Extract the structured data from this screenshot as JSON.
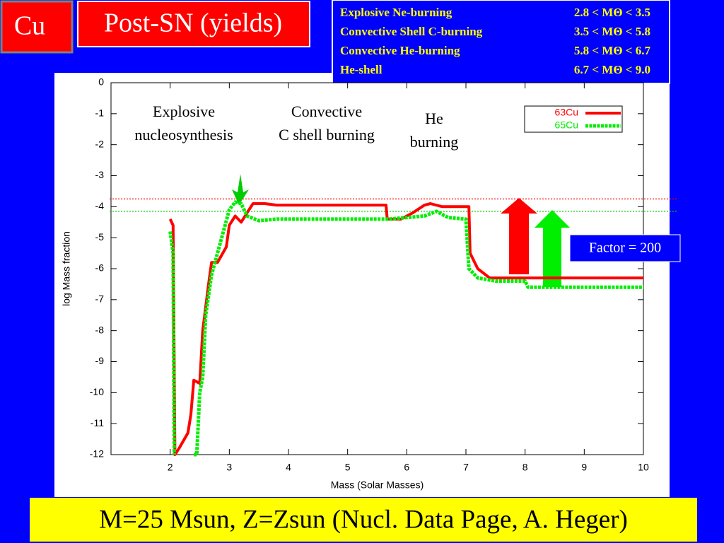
{
  "slide": {
    "element": "Cu",
    "title": "Post-SN (yields)",
    "burning_table": [
      [
        "Explosive Ne-burning",
        "2.8 < MΘ < 3.5"
      ],
      [
        "Convective Shell C-burning",
        "3.5 < MΘ < 5.8"
      ],
      [
        "Convective He-burning",
        "5.8 < MΘ < 6.7"
      ],
      [
        "He-shell",
        "6.7 < MΘ < 9.0"
      ]
    ],
    "footer": "M=25 Msun, Z=Zsun (Nucl. Data Page, A. Heger)"
  },
  "chart_data": {
    "type": "line",
    "x_label": "Mass (Solar Masses)",
    "y_label": "log Mass fraction",
    "xlim": [
      1,
      10
    ],
    "xticks": [
      2,
      3,
      4,
      5,
      6,
      7,
      8,
      9,
      10
    ],
    "ylim": [
      -12,
      0
    ],
    "yticks": [
      0,
      -1,
      -2,
      -3,
      -4,
      -5,
      -6,
      -7,
      -8,
      -9,
      -10,
      -11,
      -12
    ],
    "legend": "upper right",
    "series": [
      {
        "name": "63Cu",
        "color": "#ff0000",
        "x": [
          2.0,
          2.05,
          2.08,
          2.15,
          2.3,
          2.35,
          2.4,
          2.5,
          2.55,
          2.65,
          2.7,
          2.8,
          2.95,
          3.0,
          3.1,
          3.2,
          3.3,
          3.4,
          3.6,
          3.8,
          5.65,
          5.67,
          5.9,
          6.1,
          6.3,
          6.4,
          6.6,
          7.05,
          7.07,
          7.2,
          7.4,
          10
        ],
        "values": [
          -4.4,
          -4.6,
          -12,
          -11.8,
          -11.3,
          -10.7,
          -9.6,
          -9.7,
          -8,
          -6.5,
          -5.8,
          -5.8,
          -5.3,
          -4.6,
          -4.3,
          -4.5,
          -4.2,
          -3.9,
          -3.9,
          -3.95,
          -3.95,
          -4.4,
          -4.4,
          -4.2,
          -3.95,
          -3.9,
          -4.0,
          -4.0,
          -5.5,
          -6.0,
          -6.3,
          -6.3
        ]
      },
      {
        "name": "65Cu",
        "color": "#00ee00",
        "x": [
          2.0,
          2.05,
          2.07,
          2.3,
          2.4,
          2.45,
          2.5,
          2.55,
          2.6,
          2.7,
          2.8,
          2.9,
          3.0,
          3.1,
          3.2,
          3.3,
          3.5,
          3.8,
          5.7,
          6.0,
          6.3,
          6.5,
          6.7,
          7.0,
          7.05,
          7.2,
          7.5,
          8.0,
          8.05,
          10
        ],
        "values": [
          -4.8,
          -5.5,
          -12,
          null,
          -12,
          -12,
          -10,
          -9.5,
          -7.5,
          -6.2,
          -5.5,
          -4.8,
          -4.1,
          -3.85,
          -3.9,
          -4.3,
          -4.45,
          -4.4,
          -4.4,
          -4.35,
          -4.3,
          -4.15,
          -4.35,
          -4.4,
          -6.0,
          -6.3,
          -6.4,
          -6.4,
          -6.6,
          -6.6
        ]
      }
    ],
    "reference_lines": [
      {
        "value": -3.75,
        "color": "#ff0000"
      },
      {
        "value": -4.15,
        "color": "#00cc00"
      }
    ],
    "annotations": [
      [
        "Explosive",
        "nucleosynthesis"
      ],
      [
        "Convective",
        "C shell burning"
      ],
      [
        "He",
        "burning"
      ]
    ],
    "factor_label": "Factor = 200"
  }
}
